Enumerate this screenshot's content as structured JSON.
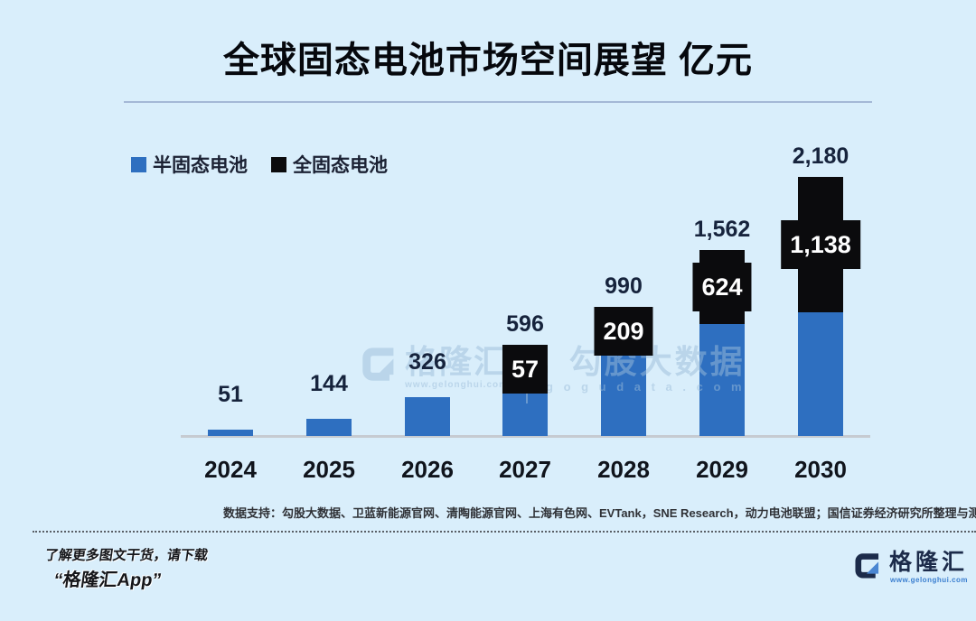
{
  "title": "全球固态电池市场空间展望 亿元",
  "legend": {
    "items": [
      {
        "label": "半固态电池",
        "color": "#2e6fc0"
      },
      {
        "label": "全固态电池",
        "color": "#0b0b0d"
      }
    ]
  },
  "chart_data": {
    "type": "bar",
    "stacked": true,
    "title": "全球固态电池市场空间展望",
    "unit": "亿元",
    "categories": [
      "2024",
      "2025",
      "2026",
      "2027",
      "2028",
      "2029",
      "2030"
    ],
    "series": [
      {
        "name": "半固态电池",
        "color": "#2e6fc0",
        "values": [
          51,
          144,
          326,
          539,
          781,
          938,
          1042
        ]
      },
      {
        "name": "全固态电池",
        "color": "#0b0b0d",
        "values": [
          0,
          0,
          0,
          57,
          209,
          624,
          1138
        ]
      }
    ],
    "totals": [
      51,
      144,
      326,
      596,
      990,
      1562,
      2180
    ],
    "total_labels": [
      "51",
      "144",
      "326",
      "596",
      "990",
      "1,562",
      "2,180"
    ],
    "segment_labels": [
      "",
      "",
      "",
      "57",
      "209",
      "624",
      "1,138"
    ],
    "ylim": [
      0,
      2400
    ],
    "grid": false,
    "legend_position": "top-left"
  },
  "source_note": "数据支持：勾股大数据、卫蓝新能源官网、清陶能源官网、上海有色网、EVTank，SNE Research，动力电池联盟；国信证券经济研究所整理与测算",
  "watermark": {
    "brand": "格隆汇",
    "brand_url": "www.gelonghui.com",
    "partner": "勾股大数据",
    "partner_url": "g o g u d a t a . c o m"
  },
  "footer": {
    "promo_line1": "了解更多图文干货，请下载",
    "promo_line2": "“格隆汇App”",
    "logo_text": "格隆汇",
    "logo_url": "www.gelonghui.com"
  },
  "colors": {
    "background": "#d9eefb",
    "semi_solid_bar": "#2e6fc0",
    "all_solid_bar": "#0b0b0d",
    "total_label": "#16233c",
    "axis_line": "#c6cbd1",
    "title_underline": "#a4b8d6"
  }
}
